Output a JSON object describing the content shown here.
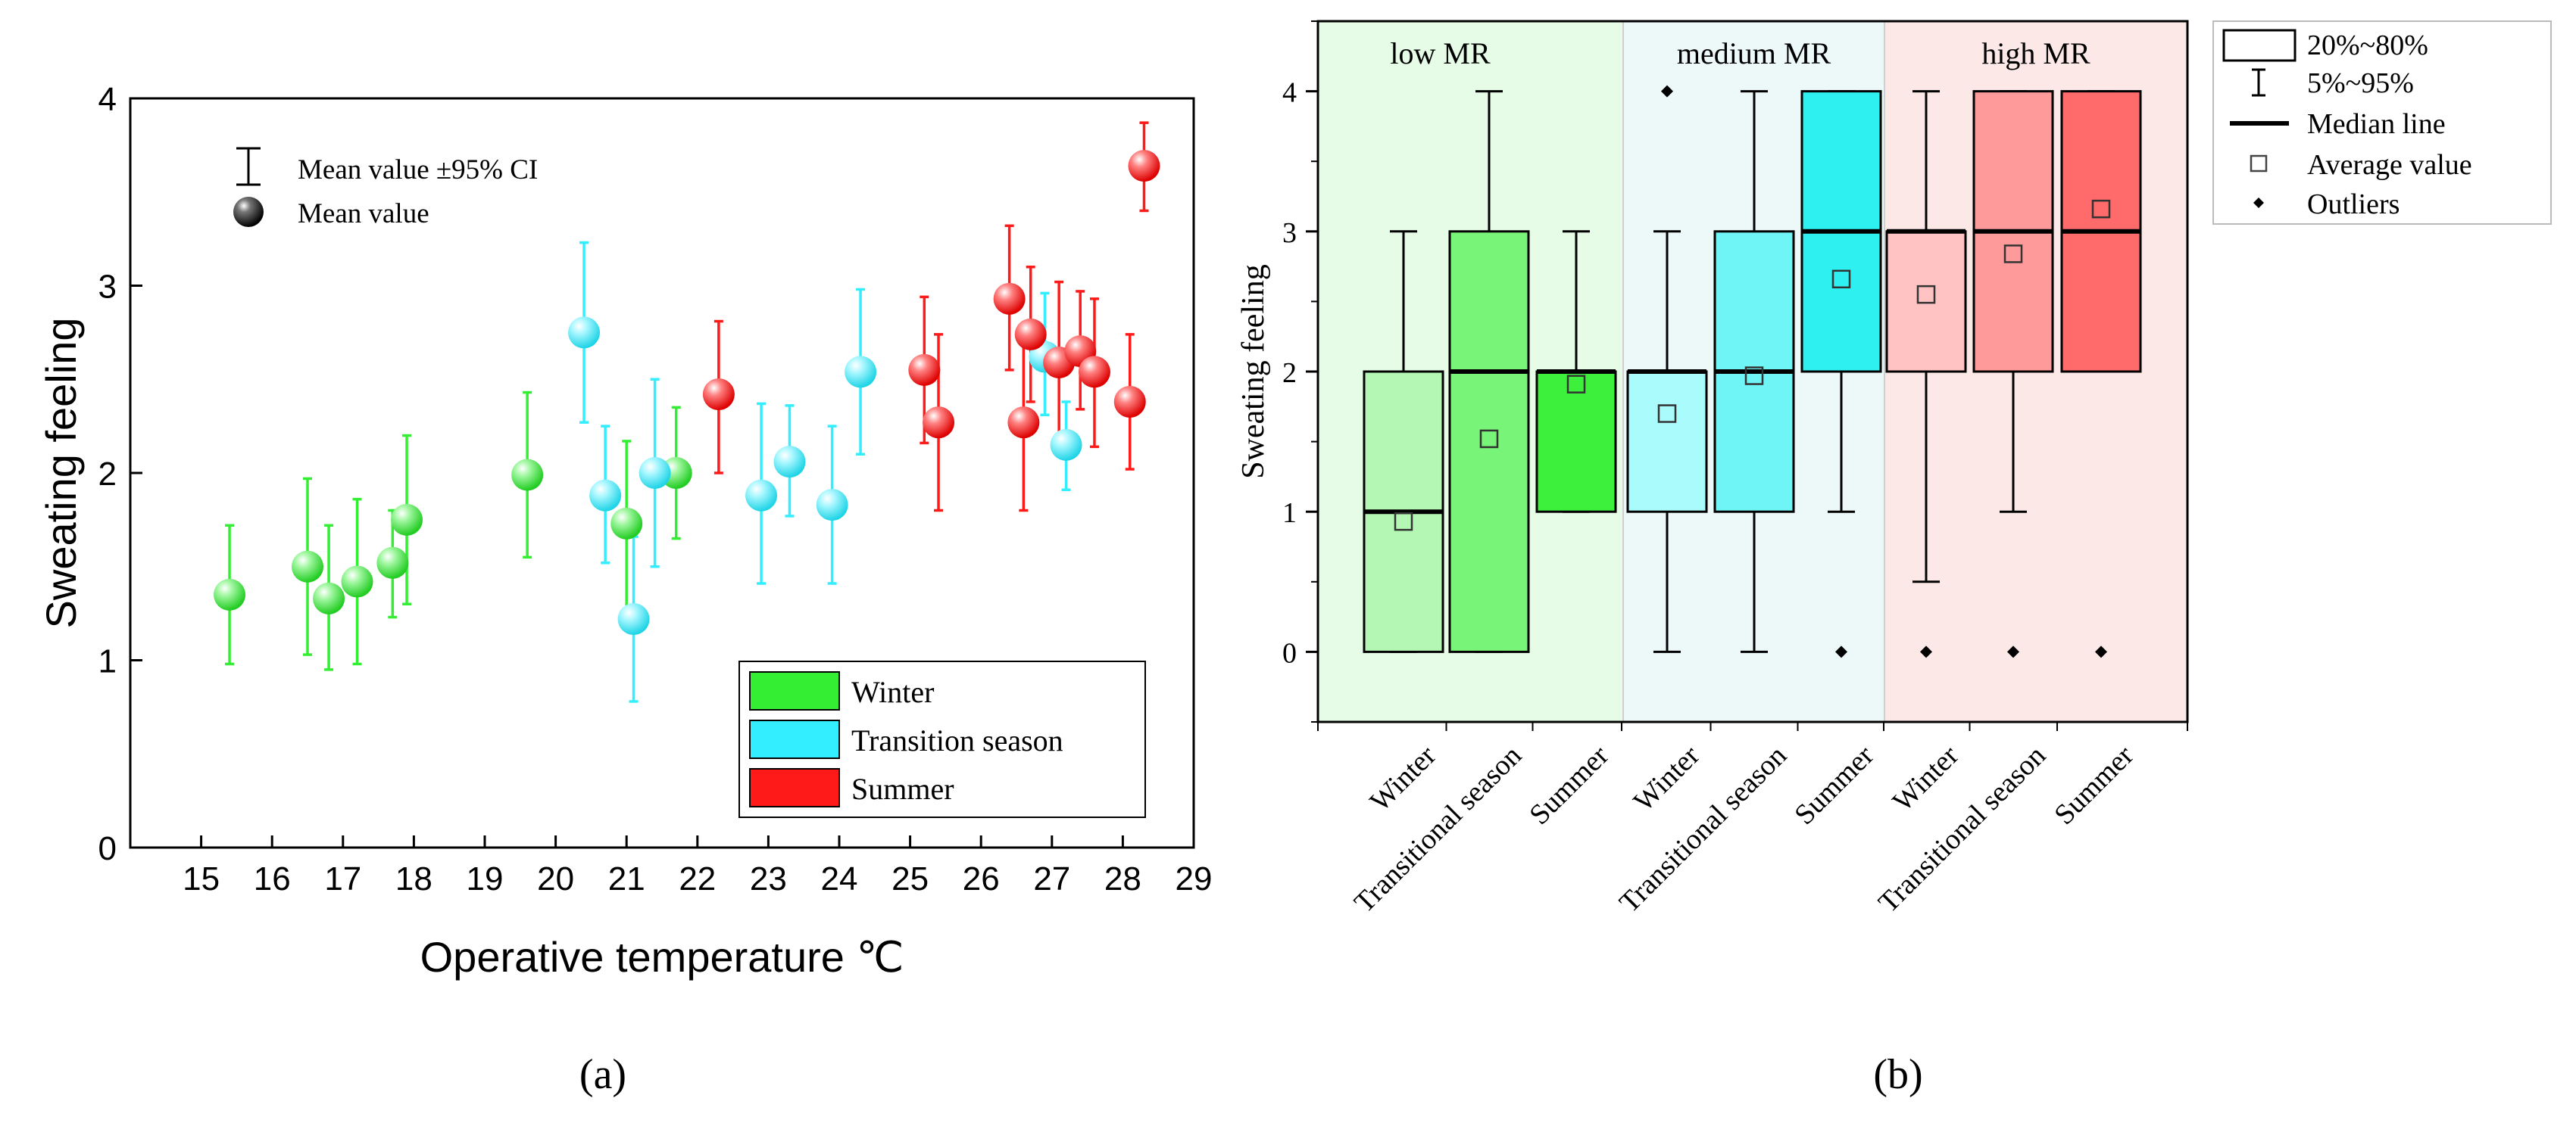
{
  "chart_data": [
    {
      "panel_label": "(a)",
      "type": "scatter",
      "xlabel": "Operative temperature ℃",
      "ylabel": "Sweating feeling",
      "xlim": [
        14,
        29
      ],
      "ylim": [
        0,
        4
      ],
      "x_ticks": [
        "15",
        "16",
        "17",
        "18",
        "19",
        "20",
        "21",
        "22",
        "23",
        "24",
        "25",
        "26",
        "27",
        "28",
        "29"
      ],
      "y_ticks": [
        "0",
        "1",
        "2",
        "3",
        "4"
      ],
      "top_legend": {
        "ci_label": "Mean value ±95% CI",
        "mean_label": "Mean value"
      },
      "series": [
        {
          "name": "Winter",
          "color": "#33ee33",
          "points": [
            {
              "x": 15.4,
              "y": 1.35,
              "lo": 0.98,
              "hi": 1.72
            },
            {
              "x": 16.5,
              "y": 1.5,
              "lo": 1.03,
              "hi": 1.97
            },
            {
              "x": 16.8,
              "y": 1.33,
              "lo": 0.95,
              "hi": 1.72
            },
            {
              "x": 17.2,
              "y": 1.42,
              "lo": 0.98,
              "hi": 1.86
            },
            {
              "x": 17.7,
              "y": 1.52,
              "lo": 1.23,
              "hi": 1.8
            },
            {
              "x": 17.9,
              "y": 1.75,
              "lo": 1.3,
              "hi": 2.2
            },
            {
              "x": 19.6,
              "y": 1.99,
              "lo": 1.55,
              "hi": 2.43
            },
            {
              "x": 21.0,
              "y": 1.73,
              "lo": 1.22,
              "hi": 2.17
            },
            {
              "x": 21.7,
              "y": 2.0,
              "lo": 1.65,
              "hi": 2.35
            }
          ]
        },
        {
          "name": "Transition season",
          "color": "#33eeff",
          "points": [
            {
              "x": 20.4,
              "y": 2.75,
              "lo": 2.27,
              "hi": 3.23
            },
            {
              "x": 20.7,
              "y": 1.88,
              "lo": 1.52,
              "hi": 2.25
            },
            {
              "x": 21.1,
              "y": 1.22,
              "lo": 0.78,
              "hi": 1.66
            },
            {
              "x": 21.4,
              "y": 2.0,
              "lo": 1.5,
              "hi": 2.5
            },
            {
              "x": 22.9,
              "y": 1.88,
              "lo": 1.41,
              "hi": 2.37
            },
            {
              "x": 23.3,
              "y": 2.06,
              "lo": 1.77,
              "hi": 2.36
            },
            {
              "x": 23.9,
              "y": 1.83,
              "lo": 1.41,
              "hi": 2.25
            },
            {
              "x": 24.3,
              "y": 2.54,
              "lo": 2.1,
              "hi": 2.98
            },
            {
              "x": 26.9,
              "y": 2.62,
              "lo": 2.31,
              "hi": 2.96
            },
            {
              "x": 27.2,
              "y": 2.15,
              "lo": 1.91,
              "hi": 2.38
            }
          ]
        },
        {
          "name": "Summer",
          "color": "#ff1a1a",
          "points": [
            {
              "x": 22.3,
              "y": 2.42,
              "lo": 2.0,
              "hi": 2.81
            },
            {
              "x": 25.2,
              "y": 2.55,
              "lo": 2.16,
              "hi": 2.94
            },
            {
              "x": 25.4,
              "y": 2.27,
              "lo": 1.8,
              "hi": 2.74
            },
            {
              "x": 26.4,
              "y": 2.93,
              "lo": 2.55,
              "hi": 3.32
            },
            {
              "x": 26.6,
              "y": 2.27,
              "lo": 1.8,
              "hi": 2.74
            },
            {
              "x": 26.7,
              "y": 2.74,
              "lo": 2.38,
              "hi": 3.1
            },
            {
              "x": 27.1,
              "y": 2.59,
              "lo": 2.2,
              "hi": 3.02
            },
            {
              "x": 27.4,
              "y": 2.65,
              "lo": 2.34,
              "hi": 2.97
            },
            {
              "x": 27.6,
              "y": 2.54,
              "lo": 2.14,
              "hi": 2.93
            },
            {
              "x": 28.1,
              "y": 2.38,
              "lo": 2.02,
              "hi": 2.74
            },
            {
              "x": 28.3,
              "y": 3.64,
              "lo": 3.4,
              "hi": 3.87
            }
          ]
        }
      ]
    },
    {
      "panel_label": "(b)",
      "type": "box",
      "ylabel": "Sweating feeling",
      "ylim": [
        -0.5,
        4.5
      ],
      "y_ticks": [
        "0",
        "1",
        "2",
        "3",
        "4"
      ],
      "groups": [
        {
          "name": "low MR",
          "bg": "#e6fce6"
        },
        {
          "name": "medium MR",
          "bg": "#edf8f8"
        },
        {
          "name": "high MR",
          "bg": "#fde8e8"
        }
      ],
      "legend": {
        "box_label": "20%~80%",
        "whisker_label": "5%~95%",
        "median_label": "Median line",
        "average_label": "Average value",
        "outlier_label": "Outliers"
      },
      "boxes": [
        {
          "category": "Winter",
          "group": 0,
          "q1": 0,
          "q3": 2,
          "median": 1,
          "mean": 0.93,
          "whisker_lo": 0,
          "whisker_hi": 3,
          "outliers": [],
          "color": "#b4f7b4"
        },
        {
          "category": "Transitional season",
          "group": 0,
          "q1": 0,
          "q3": 3,
          "median": 2,
          "mean": 1.52,
          "whisker_lo": 0,
          "whisker_hi": 4,
          "outliers": [],
          "color": "#78f578"
        },
        {
          "category": "Summer",
          "group": 0,
          "q1": 1,
          "q3": 2,
          "median": 2,
          "mean": 1.91,
          "whisker_lo": 1,
          "whisker_hi": 3,
          "outliers": [],
          "color": "#3cf03c"
        },
        {
          "category": "Winter",
          "group": 1,
          "q1": 1,
          "q3": 2,
          "median": 2,
          "mean": 1.7,
          "whisker_lo": 0,
          "whisker_hi": 3,
          "outliers": [
            4
          ],
          "color": "#aafbfb"
        },
        {
          "category": "Transitional season",
          "group": 1,
          "q1": 1,
          "q3": 3,
          "median": 2,
          "mean": 1.97,
          "whisker_lo": 0,
          "whisker_hi": 4,
          "outliers": [],
          "color": "#6ff5f5"
        },
        {
          "category": "Summer",
          "group": 1,
          "q1": 2,
          "q3": 4,
          "median": 3,
          "mean": 2.66,
          "whisker_lo": 1,
          "whisker_hi": 4,
          "outliers": [
            0
          ],
          "color": "#2ef0f0"
        },
        {
          "category": "Winter",
          "group": 2,
          "q1": 2,
          "q3": 3,
          "median": 3,
          "mean": 2.55,
          "whisker_lo": 0.5,
          "whisker_hi": 4,
          "outliers": [
            0
          ],
          "color": "#ffc3c3"
        },
        {
          "category": "Transitional season",
          "group": 2,
          "q1": 2,
          "q3": 4,
          "median": 3,
          "mean": 2.84,
          "whisker_lo": 1,
          "whisker_hi": 4,
          "outliers": [
            0
          ],
          "color": "#ff9a9a"
        },
        {
          "category": "Summer",
          "group": 2,
          "q1": 2,
          "q3": 4,
          "median": 3,
          "mean": 3.16,
          "whisker_lo": 2,
          "whisker_hi": 4,
          "outliers": [
            0
          ],
          "color": "#ff6a6a"
        }
      ]
    }
  ]
}
